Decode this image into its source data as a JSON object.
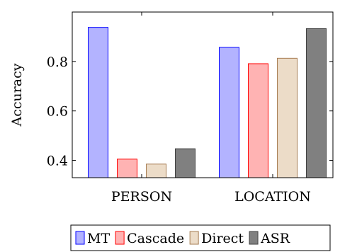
{
  "chart_data": {
    "type": "bar",
    "title": "",
    "xlabel": "",
    "ylabel": "Accuracy",
    "categories": [
      "PERSON",
      "LOCATION"
    ],
    "ylim": [
      0.33,
      1.0
    ],
    "yticks": [
      0.4,
      0.6,
      0.8
    ],
    "ytick_labels": [
      "0.4",
      "0.6",
      "0.8"
    ],
    "grid": false,
    "legend_position": "bottom",
    "series": [
      {
        "name": "MT",
        "values": [
          0.938,
          0.857
        ],
        "fill": "#b3b3ff",
        "stroke": "#0000ff"
      },
      {
        "name": "Cascade",
        "values": [
          0.405,
          0.791
        ],
        "fill": "#ffb3b3",
        "stroke": "#ff0000"
      },
      {
        "name": "Direct",
        "values": [
          0.385,
          0.813
        ],
        "fill": "#ecdcc8",
        "stroke": "#a67c52"
      },
      {
        "name": "ASR",
        "values": [
          0.447,
          0.933
        ],
        "fill": "#808080",
        "stroke": "#404040"
      }
    ]
  }
}
